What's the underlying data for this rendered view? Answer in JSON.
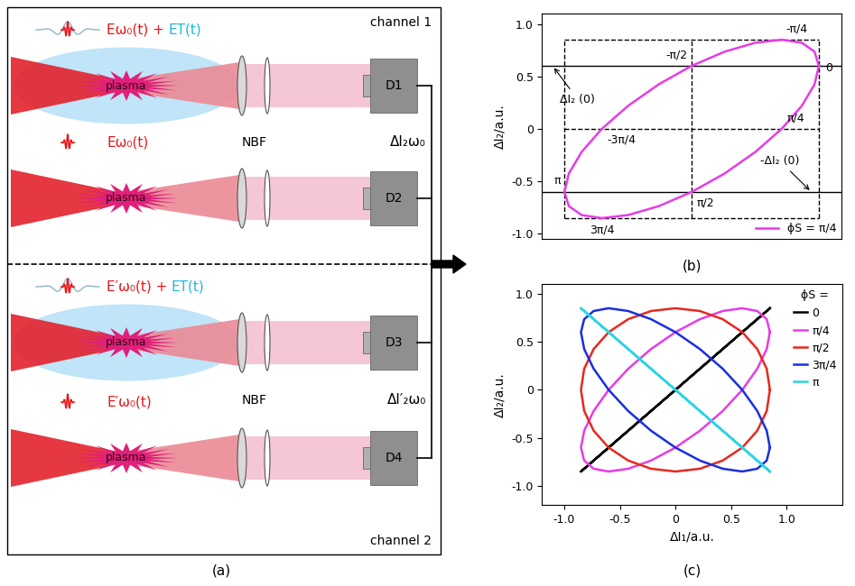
{
  "diagram": {
    "caption": "(a)",
    "channels": [
      {
        "name": "channel 1",
        "filter": "NBF",
        "output": "ΔI₂ω₀",
        "rows": [
          {
            "field_parts": [
              {
                "text": "Eω₀(t) +",
                "color": "#e8161b"
              },
              {
                "text": "ET(t)",
                "color": "#1fb8e0"
              }
            ],
            "medium": "plasma",
            "detector": "D1",
            "thz": true
          },
          {
            "field_parts": [
              {
                "text": "Eω₀(t)",
                "color": "#e8161b"
              }
            ],
            "medium": "plasma",
            "detector": "D2",
            "thz": false
          }
        ]
      },
      {
        "name": "channel 2",
        "filter": "NBF",
        "output": "ΔI′₂ω₀",
        "rows": [
          {
            "field_parts": [
              {
                "text": "E′ω₀(t) +",
                "color": "#e8161b"
              },
              {
                "text": "ET(t)",
                "color": "#1fb8e0"
              }
            ],
            "medium": "plasma",
            "detector": "D3",
            "thz": true
          },
          {
            "field_parts": [
              {
                "text": "E′ω₀(t)",
                "color": "#e8161b"
              }
            ],
            "medium": "plasma",
            "detector": "D4",
            "thz": false
          }
        ]
      }
    ]
  },
  "chart_data": [
    {
      "type": "line",
      "caption": "(b)",
      "y_label": "ΔI₂/a.u.",
      "tick_labels": "y",
      "xlim": [
        -1.0,
        1.0
      ],
      "ylim": [
        -1.05,
        1.1
      ],
      "yticks": [
        {
          "value": -1,
          "label": "-1.0"
        },
        -0.5,
        0,
        0.5,
        {
          "value": 1,
          "label": "1.0"
        }
      ],
      "legend": "lower right",
      "series": [
        {
          "name": "ϕS = π/4",
          "color": "#e63ce6",
          "x": [
            0.85,
            0.821,
            0.736,
            0.601,
            0.425,
            0.22,
            0,
            -0.22,
            -0.425,
            -0.601,
            -0.736,
            -0.821,
            -0.85,
            -0.821,
            -0.736,
            -0.601,
            -0.425,
            -0.22,
            0,
            0.22,
            0.425,
            0.601,
            0.736,
            0.821,
            0.85
          ],
          "values": [
            0.601,
            0.425,
            0.22,
            0,
            -0.22,
            -0.425,
            -0.601,
            -0.736,
            -0.821,
            -0.85,
            -0.821,
            -0.736,
            -0.601,
            -0.425,
            -0.22,
            0,
            0.22,
            0.425,
            0.601,
            0.736,
            0.821,
            0.85,
            0.821,
            0.736,
            0.601
          ]
        }
      ],
      "point_labels": [
        {
          "label": "0",
          "x": 0.85,
          "y": 0.601
        },
        {
          "label": "-π/4",
          "x": 0.601,
          "y": 0.85
        },
        {
          "label": "-π/2",
          "x": 0,
          "y": 0.601
        },
        {
          "label": "-3π/4",
          "x": -0.601,
          "y": 0
        },
        {
          "label": "π",
          "x": -0.85,
          "y": -0.601
        },
        {
          "label": "3π/4",
          "x": -0.601,
          "y": -0.85
        },
        {
          "label": "π/2",
          "x": 0,
          "y": -0.601
        },
        {
          "label": "π/4",
          "x": 0.601,
          "y": 0
        }
      ],
      "annotations": [
        {
          "text": "ΔI₂ (0)",
          "x": -0.93,
          "y": 0.601
        },
        {
          "text": "-ΔI₂ (0)",
          "x": 0.8,
          "y": -0.601
        }
      ],
      "reference_lines": {
        "dashed_x": [
          -0.85,
          0,
          0.85
        ],
        "dashed_y": [
          -0.85,
          0,
          0.85
        ],
        "solid_y": [
          0.601,
          -0.601
        ]
      }
    },
    {
      "type": "line",
      "caption": "(c)",
      "x_label": "ΔI₁/a.u.",
      "y_label": "ΔI₂/a.u.",
      "xlim": [
        -1.2,
        1.5
      ],
      "ylim": [
        -1.2,
        1.1
      ],
      "xticks": [
        {
          "value": -1,
          "label": "-1.0"
        },
        -0.5,
        0,
        0.5,
        {
          "value": 1,
          "label": "1.0"
        }
      ],
      "yticks": [
        {
          "value": -1,
          "label": "-1.0"
        },
        -0.5,
        0,
        0.5,
        {
          "value": 1,
          "label": "1.0"
        }
      ],
      "legend": "upper right",
      "legend_title": "ϕS =",
      "series": [
        {
          "name": "0",
          "color": "#000000",
          "x": [
            0.85,
            0.821,
            0.736,
            0.601,
            0.425,
            0.22,
            0,
            -0.22,
            -0.425,
            -0.601,
            -0.736,
            -0.821,
            -0.85,
            -0.821,
            -0.736,
            -0.601,
            -0.425,
            -0.22,
            0,
            0.22,
            0.425,
            0.601,
            0.736,
            0.821,
            0.85
          ],
          "values": [
            0.85,
            0.821,
            0.736,
            0.601,
            0.425,
            0.22,
            0,
            -0.22,
            -0.425,
            -0.601,
            -0.736,
            -0.821,
            -0.85,
            -0.821,
            -0.736,
            -0.601,
            -0.425,
            -0.22,
            0,
            0.22,
            0.425,
            0.601,
            0.736,
            0.821,
            0.85
          ]
        },
        {
          "name": "π/4",
          "color": "#e63ce6",
          "x": [
            0.85,
            0.821,
            0.736,
            0.601,
            0.425,
            0.22,
            0,
            -0.22,
            -0.425,
            -0.601,
            -0.736,
            -0.821,
            -0.85,
            -0.821,
            -0.736,
            -0.601,
            -0.425,
            -0.22,
            0,
            0.22,
            0.425,
            0.601,
            0.736,
            0.821,
            0.85
          ],
          "values": [
            0.601,
            0.425,
            0.22,
            0,
            -0.22,
            -0.425,
            -0.601,
            -0.736,
            -0.821,
            -0.85,
            -0.821,
            -0.736,
            -0.601,
            -0.425,
            -0.22,
            0,
            0.22,
            0.425,
            0.601,
            0.736,
            0.821,
            0.85,
            0.821,
            0.736,
            0.601
          ]
        },
        {
          "name": "π/2",
          "color": "#e8281e",
          "x": [
            0.85,
            0.821,
            0.736,
            0.601,
            0.425,
            0.22,
            0,
            -0.22,
            -0.425,
            -0.601,
            -0.736,
            -0.821,
            -0.85,
            -0.821,
            -0.736,
            -0.601,
            -0.425,
            -0.22,
            0,
            0.22,
            0.425,
            0.601,
            0.736,
            0.821,
            0.85
          ],
          "values": [
            0,
            -0.22,
            -0.425,
            -0.601,
            -0.736,
            -0.821,
            -0.85,
            -0.821,
            -0.736,
            -0.601,
            -0.425,
            -0.22,
            0,
            0.22,
            0.425,
            0.601,
            0.736,
            0.821,
            0.85,
            0.821,
            0.736,
            0.601,
            0.425,
            0.22,
            0
          ]
        },
        {
          "name": "3π/4",
          "color": "#1a2ee0",
          "x": [
            0.85,
            0.821,
            0.736,
            0.601,
            0.425,
            0.22,
            0,
            -0.22,
            -0.425,
            -0.601,
            -0.736,
            -0.821,
            -0.85,
            -0.821,
            -0.736,
            -0.601,
            -0.425,
            -0.22,
            0,
            0.22,
            0.425,
            0.601,
            0.736,
            0.821,
            0.85
          ],
          "values": [
            -0.601,
            -0.736,
            -0.821,
            -0.85,
            -0.821,
            -0.736,
            -0.601,
            -0.425,
            -0.22,
            0,
            0.22,
            0.425,
            0.601,
            0.736,
            0.821,
            0.85,
            0.821,
            0.736,
            0.601,
            0.425,
            0.22,
            0,
            -0.22,
            -0.425,
            -0.601
          ]
        },
        {
          "name": "π",
          "color": "#2ad4e6",
          "x": [
            0.85,
            0.821,
            0.736,
            0.601,
            0.425,
            0.22,
            0,
            -0.22,
            -0.425,
            -0.601,
            -0.736,
            -0.821,
            -0.85,
            -0.821,
            -0.736,
            -0.601,
            -0.425,
            -0.22,
            0,
            0.22,
            0.425,
            0.601,
            0.736,
            0.821,
            0.85
          ],
          "values": [
            -0.85,
            -0.821,
            -0.736,
            -0.601,
            -0.425,
            -0.22,
            0,
            0.22,
            0.425,
            0.601,
            0.736,
            0.821,
            0.85,
            0.821,
            0.736,
            0.601,
            0.425,
            0.22,
            0,
            -0.22,
            -0.425,
            -0.601,
            -0.736,
            -0.821,
            -0.85
          ]
        }
      ]
    }
  ]
}
